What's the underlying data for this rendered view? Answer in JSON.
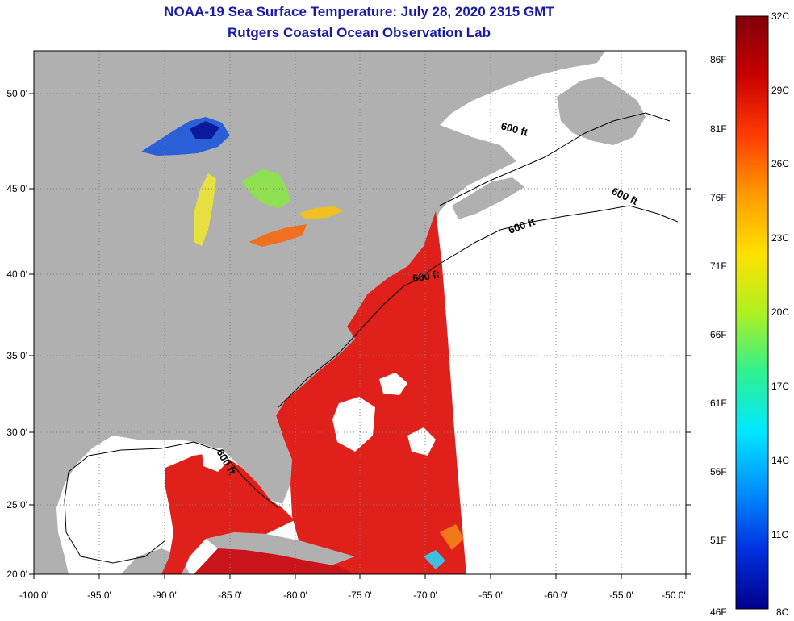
{
  "title": {
    "line1": "NOAA-19 Sea Surface Temperature:  July 28, 2020 2315 GMT",
    "line2": "Rutgers Coastal Ocean Observation Lab"
  },
  "map": {
    "lat_ticks": [
      "50 0'",
      "45 0'",
      "40 0'",
      "35 0'",
      "30 0'",
      "25 0'",
      "20 0'"
    ],
    "lon_ticks": [
      "-100 0'",
      "-95 0'",
      "-90 0'",
      "-85 0'",
      "-80 0'",
      "-75 0'",
      "-70 0'",
      "-65 0'",
      "-60 0'",
      "-55 0'",
      "-50 0'"
    ],
    "contour_labels": [
      "600 ft",
      "600 ft",
      "600 ft",
      "600 ft",
      "600 ft"
    ],
    "colors": {
      "land": "#b0b0b0",
      "no_data": "#ffffff",
      "warm_sst": "#e0201a",
      "hot_sst": "#c40f10"
    }
  },
  "colorbar": {
    "celsius_labels": [
      "32C",
      "29C",
      "26C",
      "23C",
      "20C",
      "17C",
      "14C",
      "11C",
      "8C"
    ],
    "fahrenheit_labels": [
      "86F",
      "81F",
      "76F",
      "71F",
      "66F",
      "61F",
      "56F",
      "51F",
      "46F"
    ],
    "top_label": "32C",
    "bottom_c": "8C",
    "bottom_f": "46F",
    "stops": [
      "#80000a",
      "#c80000",
      "#ff3a00",
      "#ff9a00",
      "#ffe000",
      "#b0f020",
      "#30f090",
      "#00e8ff",
      "#0090ff",
      "#0030e0",
      "#00008a"
    ]
  }
}
